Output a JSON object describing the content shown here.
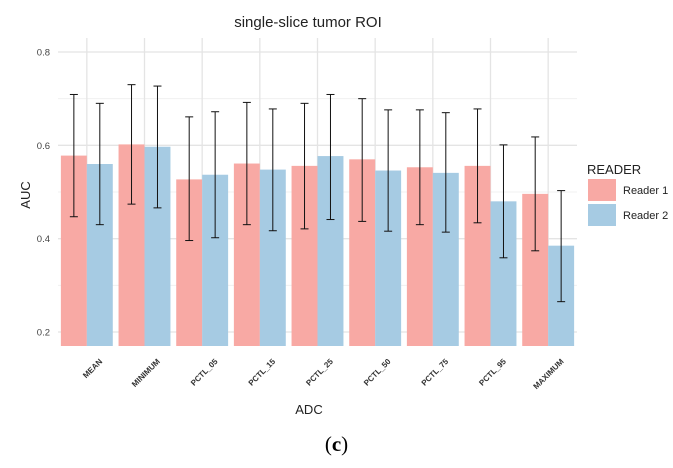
{
  "chart_data": {
    "type": "bar",
    "title": "single-slice tumor ROI",
    "xlabel": "ADC",
    "ylabel": "AUC",
    "ylim": [
      0.17,
      0.83
    ],
    "yticks": [
      0.2,
      0.4,
      0.6,
      0.8
    ],
    "ytick_labels": [
      "0.2",
      "0.4",
      "0.6",
      "0.8"
    ],
    "categories": [
      "MEAN",
      "MINIMUM",
      "PCTL_05",
      "PCTL_15",
      "PCTL_25",
      "PCTL_50",
      "PCTL_75",
      "PCTL_95",
      "MAXIMUM"
    ],
    "legend_title": "READER",
    "legend_position": "right",
    "grid": true,
    "series": [
      {
        "name": "Reader 1",
        "color": "#f8a9a4",
        "values": [
          0.578,
          0.602,
          0.527,
          0.561,
          0.556,
          0.57,
          0.553,
          0.556,
          0.496
        ],
        "lower": [
          0.447,
          0.474,
          0.396,
          0.43,
          0.421,
          0.437,
          0.43,
          0.434,
          0.374
        ],
        "upper": [
          0.709,
          0.73,
          0.661,
          0.692,
          0.69,
          0.7,
          0.676,
          0.678,
          0.618
        ]
      },
      {
        "name": "Reader 2",
        "color": "#a6cbe3",
        "values": [
          0.56,
          0.597,
          0.537,
          0.548,
          0.577,
          0.546,
          0.541,
          0.48,
          0.385
        ],
        "lower": [
          0.43,
          0.466,
          0.402,
          0.417,
          0.441,
          0.416,
          0.414,
          0.359,
          0.265
        ],
        "upper": [
          0.69,
          0.727,
          0.672,
          0.678,
          0.709,
          0.676,
          0.67,
          0.601,
          0.503
        ]
      }
    ]
  },
  "caption": {
    "open": "(",
    "letter": "c",
    "close": ")"
  }
}
